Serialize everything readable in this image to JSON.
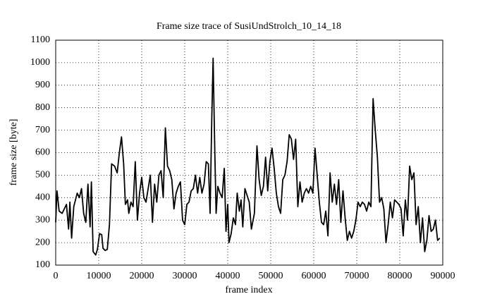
{
  "chart_data": {
    "type": "line",
    "title": "Frame size trace of SusiUndStrolch_10_14_18",
    "x_label": "frame index",
    "y_label": "frame size [byte]",
    "xlim": [
      0,
      90000
    ],
    "ylim": [
      100,
      1100
    ],
    "xticks": [
      0,
      10000,
      20000,
      30000,
      40000,
      50000,
      60000,
      70000,
      80000,
      90000
    ],
    "yticks": [
      100,
      200,
      300,
      400,
      500,
      600,
      700,
      800,
      900,
      1000,
      1100
    ],
    "grid": true,
    "color": "#000000",
    "x": [
      0,
      300,
      800,
      1500,
      2500,
      3000,
      3300,
      3700,
      4200,
      5000,
      5500,
      6000,
      6500,
      7000,
      7500,
      8000,
      8300,
      8700,
      9300,
      9700,
      10200,
      10700,
      11000,
      11500,
      12000,
      12500,
      13000,
      13700,
      14300,
      14800,
      15300,
      15800,
      16200,
      16700,
      17000,
      17500,
      18000,
      18500,
      19000,
      19500,
      20000,
      20500,
      21000,
      21500,
      22000,
      22500,
      23000,
      23500,
      24000,
      24500,
      25000,
      25500,
      26000,
      26500,
      27000,
      27500,
      28000,
      28500,
      29000,
      29500,
      30000,
      30500,
      31000,
      31500,
      32000,
      32500,
      33000,
      33500,
      34000,
      34500,
      35000,
      35500,
      35900,
      36300,
      36600,
      37000,
      37300,
      37700,
      38200,
      38700,
      39200,
      39600,
      40000,
      40300,
      40800,
      41300,
      41800,
      42200,
      42700,
      43100,
      43500,
      44000,
      44500,
      45000,
      45500,
      46200,
      46800,
      47300,
      47800,
      48300,
      48800,
      49300,
      49800,
      50300,
      50800,
      51300,
      51800,
      52300,
      52800,
      53300,
      53800,
      54300,
      54800,
      55300,
      55800,
      56300,
      56800,
      57300,
      57800,
      58300,
      58800,
      59300,
      59800,
      60300,
      60800,
      61300,
      61800,
      62300,
      62800,
      63300,
      63800,
      64300,
      64800,
      65300,
      65800,
      66300,
      66800,
      67300,
      67800,
      68300,
      68800,
      69300,
      69800,
      70300,
      70800,
      71300,
      71800,
      72300,
      72800,
      73300,
      73800,
      74300,
      74800,
      75300,
      75800,
      76300,
      76800,
      77300,
      77800,
      78300,
      78800,
      79300,
      79800,
      80300,
      80800,
      81300,
      81800,
      82300,
      82800,
      83300,
      83800,
      84300,
      84800,
      85300,
      85800,
      86300,
      86800,
      87300,
      87800,
      88300,
      88800,
      89300
    ],
    "y": [
      290,
      430,
      340,
      330,
      370,
      260,
      380,
      220,
      360,
      420,
      400,
      440,
      330,
      290,
      460,
      270,
      470,
      160,
      145,
      170,
      240,
      235,
      175,
      165,
      170,
      280,
      550,
      540,
      510,
      600,
      670,
      550,
      370,
      390,
      330,
      380,
      360,
      560,
      300,
      420,
      490,
      400,
      380,
      440,
      500,
      290,
      460,
      380,
      500,
      520,
      400,
      710,
      540,
      520,
      480,
      350,
      420,
      450,
      470,
      300,
      280,
      370,
      380,
      430,
      440,
      500,
      420,
      490,
      420,
      460,
      560,
      550,
      330,
      760,
      1020,
      600,
      330,
      450,
      420,
      400,
      530,
      250,
      370,
      200,
      240,
      310,
      280,
      420,
      340,
      390,
      270,
      440,
      410,
      380,
      260,
      330,
      630,
      480,
      410,
      450,
      580,
      430,
      560,
      620,
      530,
      420,
      360,
      330,
      480,
      500,
      560,
      680,
      660,
      570,
      660,
      360,
      470,
      380,
      420,
      440,
      420,
      450,
      420,
      620,
      500,
      380,
      290,
      280,
      340,
      230,
      510,
      380,
      460,
      370,
      480,
      290,
      430,
      310,
      210,
      250,
      220,
      250,
      300,
      380,
      360,
      380,
      370,
      340,
      380,
      360,
      840,
      700,
      580,
      380,
      400,
      350,
      200,
      280,
      380,
      310,
      390,
      380,
      370,
      350,
      230,
      390,
      300,
      540,
      480,
      510,
      280,
      360,
      200,
      310,
      160,
      210,
      320,
      250,
      260,
      300,
      210,
      220
    ]
  }
}
